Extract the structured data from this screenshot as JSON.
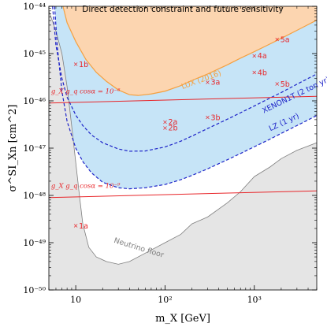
{
  "chart_data": {
    "type": "line",
    "title": "Direct detection constraint and future sensitivity",
    "xlabel": "m_X [GeV]",
    "ylabel": "σ^SI_Xn [cm^2]",
    "x_scale": "log",
    "y_scale": "log",
    "xlim": [
      5,
      5000
    ],
    "ylim": [
      1e-50,
      1e-44
    ],
    "x_ticks": [
      {
        "value": 10,
        "label": "10"
      },
      {
        "value": 100,
        "label": "10²"
      },
      {
        "value": 1000,
        "label": "10³"
      }
    ],
    "y_ticks": [
      {
        "value": 1e-44,
        "label": "10⁻⁴⁴"
      },
      {
        "value": 1e-45,
        "label": "10⁻⁴⁵"
      },
      {
        "value": 1e-46,
        "label": "10⁻⁴⁶"
      },
      {
        "value": 1e-47,
        "label": "10⁻⁴⁷"
      },
      {
        "value": 1e-48,
        "label": "10⁻⁴⁸"
      },
      {
        "value": 1e-49,
        "label": "10⁻⁴⁹"
      },
      {
        "value": 1e-50,
        "label": "10⁻⁵⁰"
      }
    ],
    "grid": false,
    "colors": {
      "lux_fill": "#fcd5b0",
      "lux_line": "#f5a040",
      "projection_fill": "#c6e4f7",
      "projection_line": "#1d23c8",
      "neutrino_fill": "#e5e5e5",
      "neutrino_line": "#7f7f7f",
      "coupling_line": "#e8262a",
      "point": "#e8262a"
    },
    "series": [
      {
        "name": "LUX (2016)",
        "style": "solid-filled-above",
        "x": [
          7.2,
          8,
          10,
          13,
          17,
          22,
          30,
          40,
          50,
          70,
          100,
          150,
          200,
          300,
          500,
          700,
          1000,
          1500,
          2000,
          3000,
          5000
        ],
        "y": [
          1e-44,
          4.5e-45,
          1.8e-45,
          7.5e-46,
          4e-46,
          2.6e-46,
          1.7e-46,
          1.35e-46,
          1.3e-46,
          1.4e-46,
          1.6e-46,
          2.1e-46,
          2.7e-46,
          3.7e-46,
          5.8e-46,
          8e-46,
          1.1e-45,
          1.6e-45,
          2.1e-45,
          3.1e-45,
          5.1e-45
        ]
      },
      {
        "name": "XENON1T (2 ton yr)",
        "style": "dashed",
        "x": [
          5.5,
          6,
          7,
          8,
          10,
          12,
          15,
          20,
          30,
          40,
          60,
          100,
          150,
          200,
          300,
          500,
          700,
          1000,
          1500,
          2000,
          3000,
          5000
        ],
        "y": [
          1e-44,
          1.5e-45,
          3e-46,
          1.2e-46,
          5e-47,
          3e-47,
          1.9e-47,
          1.3e-47,
          9.6e-48,
          8.6e-48,
          8.7e-48,
          1.06e-47,
          1.4e-47,
          1.8e-47,
          2.6e-47,
          4.1e-47,
          5.6e-47,
          7.8e-47,
          1.15e-46,
          1.5e-46,
          2.25e-46,
          3.7e-46
        ]
      },
      {
        "name": "LZ (1 yr)",
        "style": "dashed",
        "x": [
          5.8,
          6.2,
          7,
          8,
          10,
          12,
          15,
          20,
          30,
          40,
          60,
          100,
          150,
          200,
          300,
          500,
          700,
          1000,
          1500,
          2000,
          3000,
          5000
        ],
        "y": [
          1e-44,
          1.5e-45,
          1.6e-46,
          3.7e-47,
          1e-47,
          5.2e-48,
          3e-48,
          1.9e-48,
          1.45e-48,
          1.38e-48,
          1.45e-48,
          1.7e-48,
          2.15e-48,
          2.65e-48,
          3.65e-48,
          5.7e-48,
          7.7e-48,
          1.07e-47,
          1.55e-47,
          2.05e-47,
          3e-47,
          4.9e-47
        ]
      },
      {
        "name": "Neutrino floor",
        "style": "solid-filled-below",
        "x": [
          5,
          6,
          7,
          8,
          9,
          10,
          11,
          12,
          14,
          17,
          22,
          30,
          40,
          60,
          100,
          150,
          200,
          300,
          500,
          700,
          1000,
          1500,
          2000,
          3000,
          5000
        ],
        "y": [
          8e-45,
          3e-45,
          1e-45,
          2e-46,
          3e-47,
          5e-48,
          1e-48,
          2.5e-49,
          8e-50,
          5e-50,
          4e-50,
          3.5e-50,
          4e-50,
          6e-50,
          1e-49,
          1.5e-49,
          2.5e-49,
          3.5e-49,
          7e-49,
          1.2e-48,
          2.5e-48,
          4e-48,
          6e-48,
          9e-48,
          1.3e-47
        ]
      },
      {
        "name": "g_X g_q cosα = 10⁻⁸",
        "style": "solid",
        "x": [
          5,
          5000
        ],
        "y": [
          9e-47,
          1.25e-46
        ]
      },
      {
        "name": "g_X g_q cosα = 10⁻⁹",
        "style": "solid",
        "x": [
          5,
          5000
        ],
        "y": [
          9e-49,
          1.25e-48
        ]
      }
    ],
    "points": [
      {
        "label": "1a",
        "x": 10,
        "y": 2.3e-49
      },
      {
        "label": "1b",
        "x": 10,
        "y": 6e-46
      },
      {
        "label": "2a",
        "x": 100,
        "y": 3.6e-47
      },
      {
        "label": "2b",
        "x": 100,
        "y": 2.7e-47
      },
      {
        "label": "3a",
        "x": 300,
        "y": 2.5e-46
      },
      {
        "label": "3b",
        "x": 300,
        "y": 4.5e-47
      },
      {
        "label": "4a",
        "x": 1000,
        "y": 9e-46
      },
      {
        "label": "4b",
        "x": 1000,
        "y": 4e-46
      },
      {
        "label": "5a",
        "x": 1800,
        "y": 2e-45
      },
      {
        "label": "5b",
        "x": 1800,
        "y": 2.3e-46
      }
    ],
    "annotations": [
      {
        "text": "LUX (2016)",
        "x": 260,
        "y": 2.5e-46,
        "angle": -20,
        "color": "#f5a040"
      },
      {
        "text": "XENON1T (2 ton yr)",
        "x": 3000,
        "y": 1.2e-46,
        "angle": -26,
        "color": "#1d23c8"
      },
      {
        "text": "LZ (1 yr)",
        "x": 2200,
        "y": 3.2e-47,
        "angle": -25,
        "color": "#1d23c8"
      },
      {
        "text": "Neutrino floor",
        "x": 50,
        "y": 7e-50,
        "angle": 17,
        "color": "#7f7f7f"
      },
      {
        "text": "g_X g_q cosα = 10⁻⁸",
        "x": 5.3,
        "y": 1.45e-46,
        "angle": 0,
        "color": "#e8262a"
      },
      {
        "text": "g_X g_q cosα = 10⁻⁹",
        "x": 5.3,
        "y": 1.45e-48,
        "angle": 0,
        "color": "#e8262a"
      }
    ]
  }
}
